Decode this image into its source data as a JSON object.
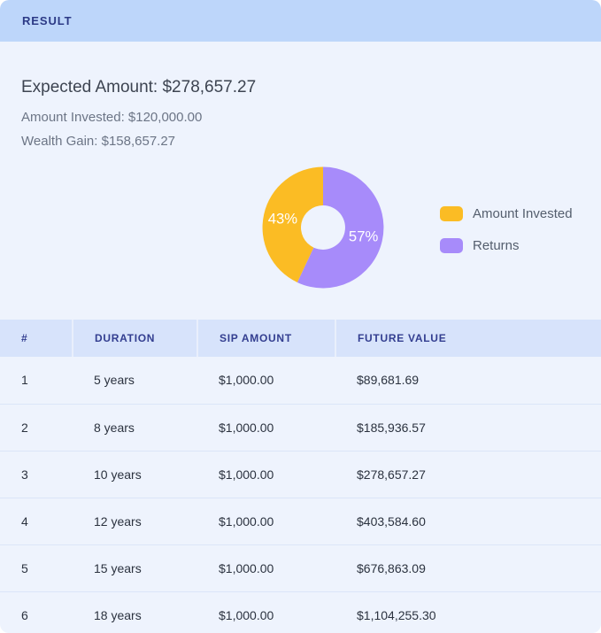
{
  "banner": {
    "title": "RESULT"
  },
  "summary": {
    "heading": "Expected Amount: $278,657.27",
    "amount_invested": "Amount Invested: $120,000.00",
    "wealth_gain": "Wealth Gain: $158,657.27"
  },
  "chart_data": {
    "type": "pie",
    "donut": true,
    "labels": [
      "Amount Invested",
      "Returns"
    ],
    "values": [
      43,
      57
    ],
    "slice_labels": [
      "43%",
      "57%"
    ],
    "colors": [
      "#fbbc24",
      "#a78bfa"
    ],
    "legend_position": "right",
    "orientation": "last-value-clockwise-from-top"
  },
  "table": {
    "headers": [
      "#",
      "DURATION",
      "SIP AMOUNT",
      "FUTURE VALUE"
    ],
    "rows": [
      [
        "1",
        "5 years",
        "$1,000.00",
        "$89,681.69"
      ],
      [
        "2",
        "8 years",
        "$1,000.00",
        "$185,936.57"
      ],
      [
        "3",
        "10 years",
        "$1,000.00",
        "$278,657.27"
      ],
      [
        "4",
        "12 years",
        "$1,000.00",
        "$403,584.60"
      ],
      [
        "5",
        "15 years",
        "$1,000.00",
        "$676,863.09"
      ],
      [
        "6",
        "18 years",
        "$1,000.00",
        "$1,104,255.30"
      ]
    ]
  },
  "theme": {
    "page_bg": "#eef3fd",
    "banner_bg": "#bdd6fa",
    "banner_text": "#2c3a86",
    "table_header_bg": "#d7e3fb",
    "table_header_text": "#333e90",
    "accent_yellow": "#fbbc24",
    "accent_purple": "#a78bfa"
  }
}
